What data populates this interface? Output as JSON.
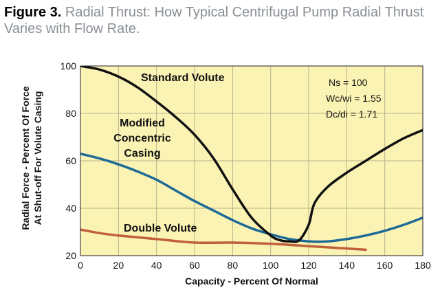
{
  "header": {
    "label": "Figure 3.",
    "title": "Radial Thrust: How Typical Centrifugal Pump Radial Thrust Varies with Flow Rate."
  },
  "chart_data": {
    "type": "line",
    "xlabel": "Capacity - Percent Of Normal",
    "ylabel_line1": "Radial Force - Percent Of Force",
    "ylabel_line2": "At Shut-off For Volute Casing",
    "xlim": [
      0,
      180
    ],
    "ylim": [
      20,
      100
    ],
    "xticks": [
      0,
      20,
      40,
      60,
      80,
      100,
      120,
      140,
      160,
      180
    ],
    "yticks": [
      20,
      40,
      60,
      80,
      100
    ],
    "grid": true,
    "background": "#fbf3b4",
    "series": [
      {
        "name": "Standard Volute",
        "color": "#111111",
        "points": [
          [
            0,
            100
          ],
          [
            10,
            98.5
          ],
          [
            20,
            95.5
          ],
          [
            30,
            91
          ],
          [
            40,
            85
          ],
          [
            50,
            78.5
          ],
          [
            60,
            71
          ],
          [
            70,
            61
          ],
          [
            80,
            48
          ],
          [
            90,
            36
          ],
          [
            100,
            28.5
          ],
          [
            105,
            26.5
          ],
          [
            110,
            26
          ],
          [
            115,
            26.5
          ],
          [
            120,
            33
          ],
          [
            123,
            42
          ],
          [
            130,
            49
          ],
          [
            140,
            55
          ],
          [
            150,
            60
          ],
          [
            160,
            65
          ],
          [
            170,
            69.5
          ],
          [
            180,
            73
          ]
        ]
      },
      {
        "name": "Modified Concentric Casing",
        "color": "#1d6a96",
        "points": [
          [
            0,
            63
          ],
          [
            10,
            61
          ],
          [
            20,
            58.5
          ],
          [
            30,
            55.5
          ],
          [
            40,
            52
          ],
          [
            50,
            47.5
          ],
          [
            60,
            43
          ],
          [
            70,
            39
          ],
          [
            80,
            35
          ],
          [
            90,
            31.5
          ],
          [
            100,
            29
          ],
          [
            110,
            27
          ],
          [
            120,
            26
          ],
          [
            130,
            26
          ],
          [
            140,
            27
          ],
          [
            150,
            28.5
          ],
          [
            160,
            30.5
          ],
          [
            170,
            33
          ],
          [
            180,
            36
          ]
        ]
      },
      {
        "name": "Double Volute",
        "color": "#c0603a",
        "points": [
          [
            0,
            31
          ],
          [
            10,
            29.5
          ],
          [
            20,
            28.5
          ],
          [
            40,
            27
          ],
          [
            60,
            25.5
          ],
          [
            80,
            25.5
          ],
          [
            100,
            25
          ],
          [
            120,
            24
          ],
          [
            140,
            23
          ],
          [
            150,
            22.5
          ]
        ]
      }
    ],
    "annotations": {
      "standard": "Standard Volute",
      "modified_1": "Modified",
      "modified_2": "Concentric",
      "modified_3": "Casing",
      "double": "Double Volute"
    },
    "parameters": [
      "Ns = 100",
      "Wc/wi = 1.55",
      "Dc/di = 1.71"
    ]
  }
}
